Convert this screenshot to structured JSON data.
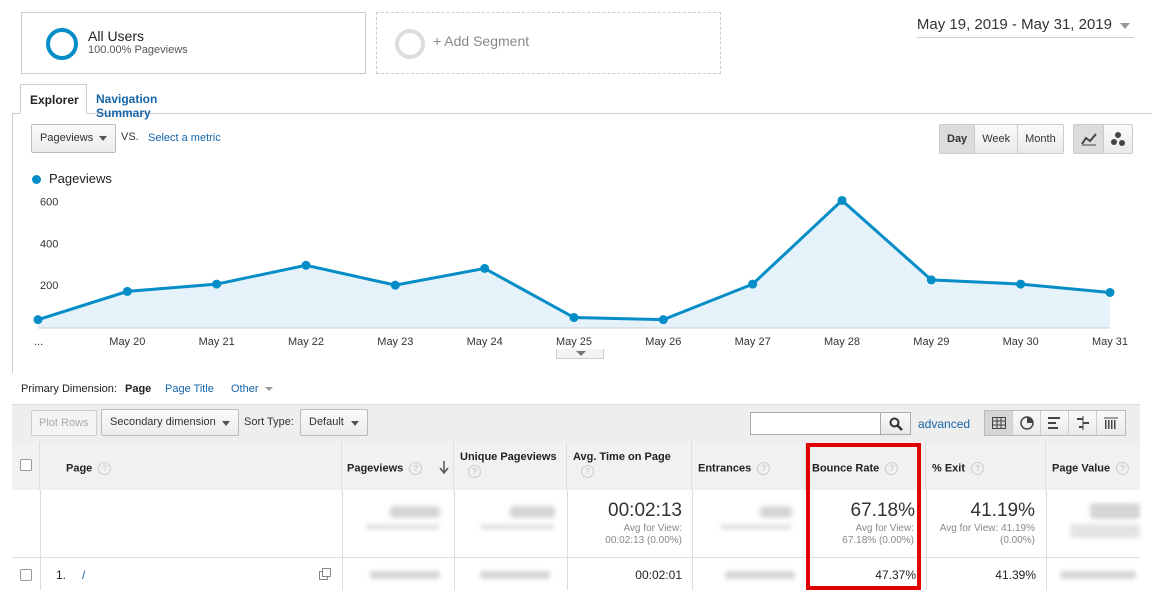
{
  "segments": {
    "all_users": {
      "title": "All Users",
      "subtitle": "100.00% Pageviews"
    },
    "add_segment": "+ Add Segment"
  },
  "date_range": "May 19, 2019 - May 31, 2019",
  "tabs": [
    "Explorer",
    "Navigation Summary"
  ],
  "metric_select": "Pageviews",
  "vs_label": "VS.",
  "select_metric": "Select a metric",
  "granularity": {
    "day": "Day",
    "week": "Week",
    "month": "Month",
    "selected": "Day"
  },
  "chart_icons": [
    "line-chart-icon",
    "motion-chart-icon"
  ],
  "chart_data": {
    "type": "area",
    "series": [
      {
        "name": "Pageviews",
        "color": "#058dc7",
        "values": [
          40,
          175,
          210,
          300,
          205,
          285,
          50,
          40,
          210,
          610,
          230,
          210,
          170
        ]
      }
    ],
    "x": [
      "...",
      "May 20",
      "May 21",
      "May 22",
      "May 23",
      "May 24",
      "May 25",
      "May 26",
      "May 27",
      "May 28",
      "May 29",
      "May 30",
      "May 31"
    ],
    "y_ticks": [
      "200",
      "400",
      "600"
    ],
    "ylim": [
      0,
      660
    ],
    "grid": false,
    "legend": "top-left"
  },
  "primary_dimension": {
    "label": "Primary Dimension:",
    "options": [
      "Page",
      "Page Title",
      "Other"
    ],
    "selected": "Page"
  },
  "toolbar": {
    "plot_rows": "Plot Rows",
    "secondary_dimension": "Secondary dimension",
    "sort_type_label": "Sort Type:",
    "sort_type": "Default",
    "advanced": "advanced"
  },
  "table": {
    "headers": {
      "page": "Page",
      "pageviews": "Pageviews",
      "unique_pageviews": "Unique Pageviews",
      "avg_time": "Avg. Time on Page",
      "entrances": "Entrances",
      "bounce_rate": "Bounce Rate",
      "exit": "% Exit",
      "page_value": "Page Value"
    },
    "totals": {
      "avg_time": {
        "value": "00:02:13",
        "sub1": "Avg for View:",
        "sub2": "00:02:13 (0.00%)"
      },
      "bounce_rate": {
        "value": "67.18%",
        "sub1": "Avg for View:",
        "sub2": "67.18% (0.00%)"
      },
      "exit": {
        "value": "41.19%",
        "sub1": "Avg for View: 41.19%",
        "sub2": "(0.00%)"
      }
    },
    "rows": [
      {
        "index": "1.",
        "page": "/",
        "avg_time": "00:02:01",
        "bounce_rate": "47.37%",
        "exit": "41.39%"
      }
    ]
  },
  "highlight_color": "#e00000"
}
